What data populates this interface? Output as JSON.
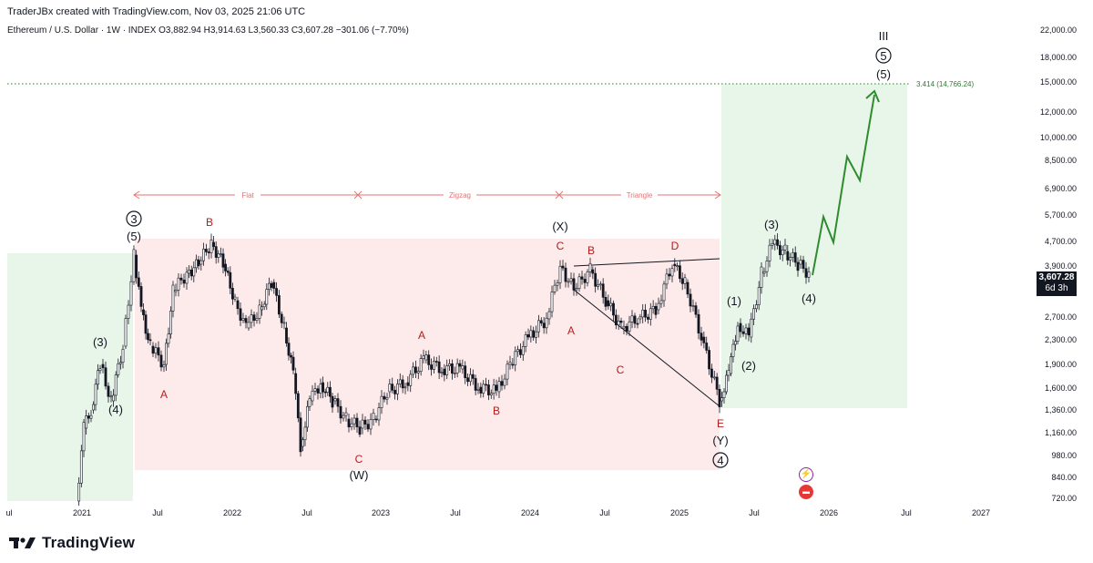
{
  "header": {
    "credit": "TraderJBx created with TradingView.com, Nov 03, 2025 21:06 UTC",
    "symbol_line": "Ethereum / U.S. Dollar · 1W · INDEX  O3,882.94  H3,914.63  L3,560.33  C3,607.28  −301.06 (−7.70%)"
  },
  "brand": {
    "name": "TradingView",
    "logo_icon": "tradingview-logo-icon"
  },
  "price_axis": {
    "ticks": [
      "22,000.00",
      "18,000.00",
      "15,000.00",
      "12,000.00",
      "10,000.00",
      "8,500.00",
      "6,900.00",
      "5,700.00",
      "4,700.00",
      "3,900.00",
      "2,700.00",
      "2,300.00",
      "1,900.00",
      "1,600.00",
      "1,360.00",
      "1,160.00",
      "980.00",
      "840.00",
      "720.00"
    ],
    "current_price": "3,607.28",
    "countdown": "6d 3h"
  },
  "time_axis": {
    "ticks": [
      "ul",
      "2021",
      "Jul",
      "2022",
      "Jul",
      "2023",
      "Jul",
      "2024",
      "Jul",
      "2025",
      "Jul",
      "2026",
      "Jul",
      "2027"
    ]
  },
  "target": {
    "label": "3.414 (14,766.24)",
    "color": "#2e7d32"
  },
  "ranges": [
    {
      "label": "Flat"
    },
    {
      "label": "Zigzag"
    },
    {
      "label": "Triangle"
    }
  ],
  "colors": {
    "up": "#131722",
    "down": "#131722",
    "range_arrow": "#e57373",
    "red_label": "#b71c1c",
    "green_zone": "#e8f5e9",
    "red_zone": "#fdeaea",
    "projection": "#2e8b2e"
  },
  "wave_labels": {
    "black": [
      "3",
      "(5)",
      "(3)",
      "(4)",
      "(W)",
      "(X)",
      "(Y)",
      "4",
      "(1)",
      "(2)",
      "(3)",
      "(4)",
      "III",
      "5",
      "(5)"
    ],
    "red": [
      "B",
      "A",
      "A",
      "C",
      "B",
      "C",
      "B",
      "A",
      "C",
      "D",
      "E"
    ]
  },
  "chart_data": {
    "type": "candlestick",
    "scale": "log",
    "ylim": [
      700,
      23000
    ],
    "xlim": [
      "2020-06",
      "2027-03"
    ],
    "approx_weekly_closes": [
      [
        "2020-12",
        730
      ],
      [
        "2021-02",
        1600
      ],
      [
        "2021-04",
        2200
      ],
      [
        "2021-05",
        3900
      ],
      [
        "2021-06",
        2000
      ],
      [
        "2021-08",
        3200
      ],
      [
        "2021-11",
        4800
      ],
      [
        "2022-01",
        2500
      ],
      [
        "2022-03",
        3400
      ],
      [
        "2022-06",
        1000
      ],
      [
        "2022-08",
        1900
      ],
      [
        "2022-11",
        1150
      ],
      [
        "2023-01",
        1600
      ],
      [
        "2023-04",
        2100
      ],
      [
        "2023-08",
        1650
      ],
      [
        "2023-10",
        1550
      ],
      [
        "2024-01",
        2300
      ],
      [
        "2024-03",
        4000
      ],
      [
        "2024-05",
        2900
      ],
      [
        "2024-06",
        3800
      ],
      [
        "2024-08",
        2200
      ],
      [
        "2024-12",
        4000
      ],
      [
        "2025-02",
        2500
      ],
      [
        "2025-04",
        1450
      ],
      [
        "2025-05",
        2500
      ],
      [
        "2025-07",
        2600
      ],
      [
        "2025-08",
        4800
      ],
      [
        "2025-11",
        3607.28
      ]
    ],
    "projection_path": [
      [
        "2025-11",
        3600
      ],
      [
        "2025-12",
        5700
      ],
      [
        "2026-01",
        4400
      ],
      [
        "2026-02",
        8600
      ],
      [
        "2026-03",
        6900
      ],
      [
        "2026-04",
        14766.24
      ]
    ]
  }
}
